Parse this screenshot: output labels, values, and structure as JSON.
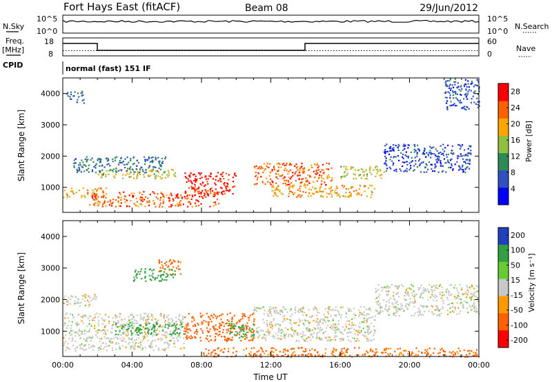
{
  "header": {
    "station": "Fort Hays East (fitACF)",
    "beam": "Beam 08",
    "date": "29/Jun/2012"
  },
  "ctrl": {
    "nsky_label": "N.Sky",
    "nsky_ticks": [
      "10^5",
      "10^0"
    ],
    "nsearch_label": "N.Search",
    "nsearch_ticks": [
      "10^5",
      "10^0"
    ],
    "freq_label": "Freq.",
    "freq_unit": "[MHz]",
    "freq_ticks": [
      "18",
      "8"
    ],
    "nave_label": "Nave",
    "nave_ticks": [
      "60",
      "0"
    ],
    "cpid_label": "CPID",
    "cpid_value": "normal (fast) 151 IF"
  },
  "chart_data": [
    {
      "type": "heatmap",
      "name": "power",
      "ylabel": "Slant Range [km]",
      "xlabel": "",
      "ylim": [
        200,
        4500
      ],
      "xlim_hours": [
        0,
        24
      ],
      "y_ticks": [
        "1000",
        "2000",
        "3000",
        "4000"
      ],
      "colorbar": {
        "label": "Power [dB]",
        "ticks": [
          "4",
          "8",
          "12",
          "16",
          "20",
          "24",
          "28"
        ],
        "range": [
          0,
          30
        ],
        "colors": [
          "#0000ff",
          "#3050c0",
          "#2e8b57",
          "#90c040",
          "#ffa500",
          "#ff6000",
          "#ff0000"
        ]
      },
      "features": [
        {
          "t0": 0.0,
          "t1": 2.5,
          "r0": 700,
          "r1": 1000,
          "level": 20
        },
        {
          "t0": 1.5,
          "t1": 9.0,
          "r0": 400,
          "r1": 900,
          "level": 24
        },
        {
          "t0": 2.0,
          "t1": 6.5,
          "r0": 1300,
          "r1": 1600,
          "level": 16
        },
        {
          "t0": 7.0,
          "t1": 10.0,
          "r0": 800,
          "r1": 1500,
          "level": 28
        },
        {
          "t0": 0.5,
          "t1": 6.0,
          "r0": 1500,
          "r1": 2000,
          "level": 8
        },
        {
          "t0": 11.0,
          "t1": 15.5,
          "r0": 1100,
          "r1": 1800,
          "level": 24
        },
        {
          "t0": 12.0,
          "t1": 18.0,
          "r0": 700,
          "r1": 1100,
          "level": 20
        },
        {
          "t0": 16.0,
          "t1": 18.5,
          "r0": 1300,
          "r1": 1700,
          "level": 16
        },
        {
          "t0": 18.5,
          "t1": 23.5,
          "r0": 1500,
          "r1": 2400,
          "level": 6
        },
        {
          "t0": 0.2,
          "t1": 1.2,
          "r0": 3700,
          "r1": 4100,
          "level": 8
        },
        {
          "t0": 22.0,
          "t1": 24.0,
          "r0": 3500,
          "r1": 4500,
          "level": 6
        }
      ]
    },
    {
      "type": "heatmap",
      "name": "velocity",
      "ylabel": "Slant Range [km]",
      "xlabel": "Time UT",
      "ylim": [
        200,
        4500
      ],
      "xlim_hours": [
        0,
        24
      ],
      "x_ticks": [
        "00:00",
        "04:00",
        "08:00",
        "12:00",
        "16:00",
        "20:00",
        "00:00"
      ],
      "y_ticks": [
        "1000",
        "2000",
        "3000",
        "4000"
      ],
      "colorbar": {
        "label": "Velocity [m s⁻¹]",
        "ticks": [
          "200",
          "100",
          "50",
          "15",
          "-15",
          "-50",
          "-100",
          "-200"
        ],
        "range": [
          -250,
          250
        ],
        "colors": [
          "#2040c0",
          "#30a040",
          "#66cc33",
          "#c8c8c8",
          "#ff9900",
          "#ff6000",
          "#ff0000"
        ]
      },
      "features": [
        {
          "t0": 0.0,
          "t1": 7.0,
          "r0": 400,
          "r1": 1600,
          "v": 0
        },
        {
          "t0": 3.0,
          "t1": 7.0,
          "r0": 900,
          "r1": 1300,
          "v": 80
        },
        {
          "t0": 7.0,
          "t1": 11.0,
          "r0": 700,
          "r1": 1600,
          "v": -80
        },
        {
          "t0": 9.5,
          "t1": 11.0,
          "r0": 800,
          "r1": 1300,
          "v": 60
        },
        {
          "t0": 11.0,
          "t1": 18.0,
          "r0": 700,
          "r1": 1800,
          "v": 0
        },
        {
          "t0": 18.0,
          "t1": 24.0,
          "r0": 1500,
          "r1": 2500,
          "v": 0
        },
        {
          "t0": 5.5,
          "t1": 6.8,
          "r0": 2800,
          "r1": 3300,
          "v": -60
        },
        {
          "t0": 4.0,
          "t1": 6.5,
          "r0": 2600,
          "r1": 3000,
          "v": 80
        },
        {
          "t0": 0.0,
          "t1": 2.0,
          "r0": 1800,
          "r1": 2200,
          "v": 0
        },
        {
          "t0": 8.0,
          "t1": 24.0,
          "r0": 200,
          "r1": 500,
          "v": -60
        }
      ]
    }
  ]
}
